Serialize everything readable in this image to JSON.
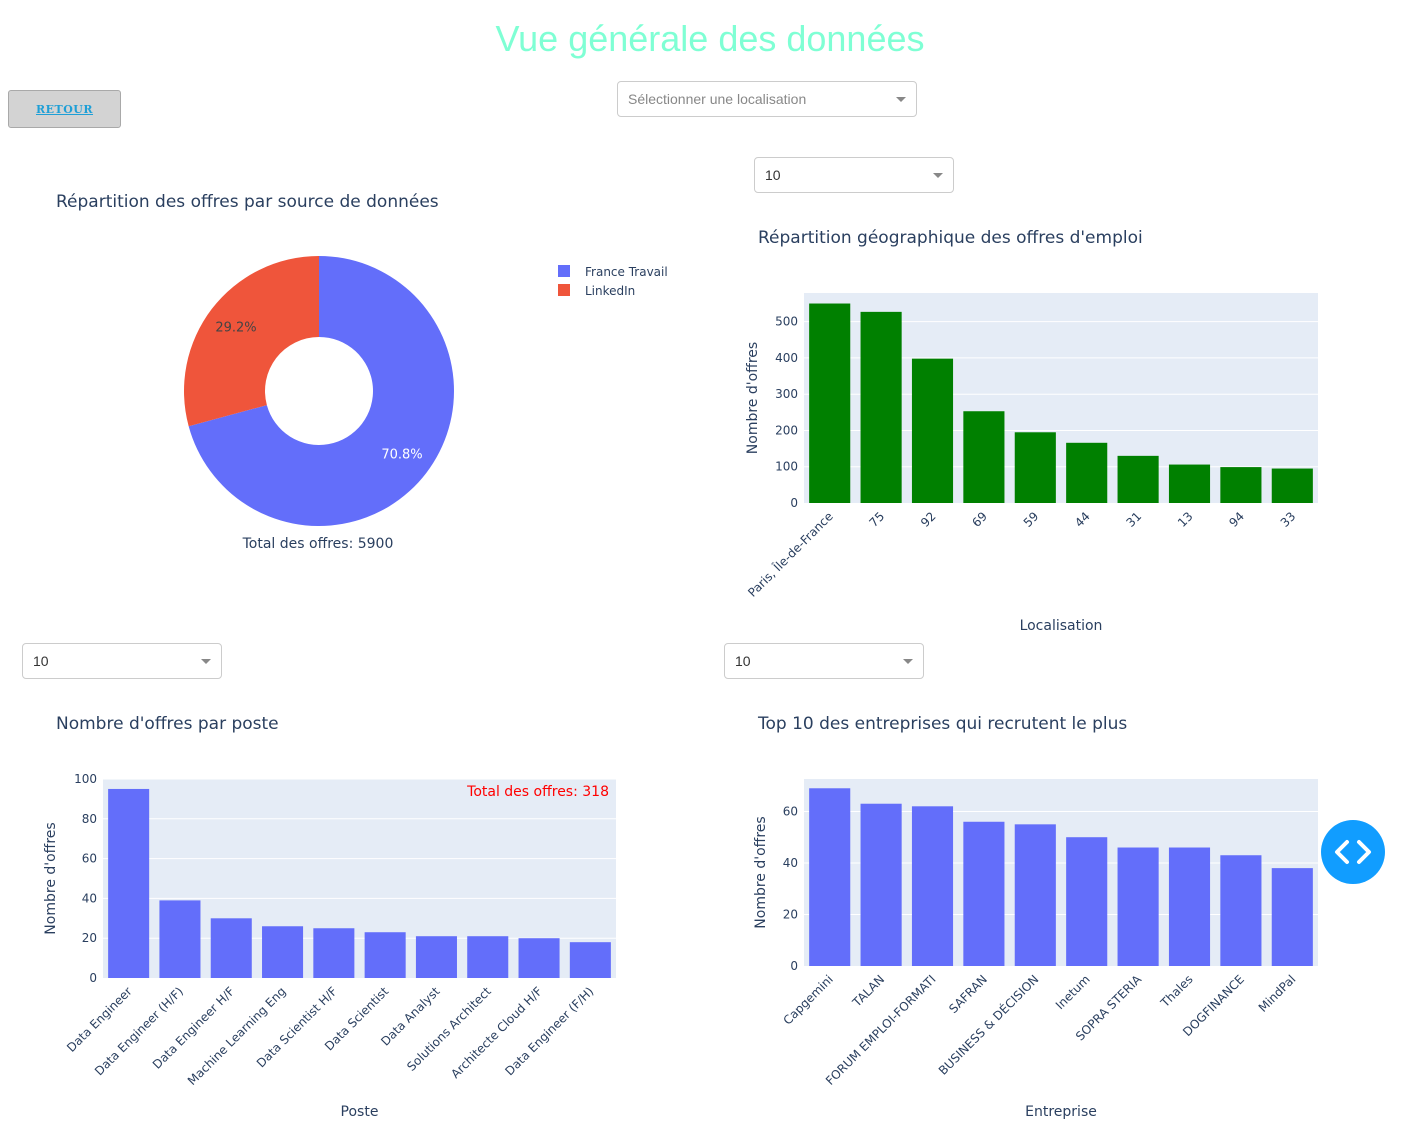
{
  "page": {
    "title": "Vue générale des données",
    "back_label": "RETOUR",
    "location_placeholder": "Sélectionner une localisation",
    "dropdown_geo_value": "10",
    "dropdown_poste_value": "10",
    "dropdown_entreprise_value": "10"
  },
  "chart_data": [
    {
      "id": "source",
      "type": "pie",
      "title": "Répartition des offres par source de données",
      "labels": [
        "France Travail",
        "LinkedIn"
      ],
      "values": [
        70.8,
        29.2
      ],
      "value_labels": [
        "70.8%",
        "29.2%"
      ],
      "colors": [
        "#636efa",
        "#ef553b"
      ],
      "hole": 0.4,
      "annotation": "Total des offres: 5900",
      "legend": "top-right"
    },
    {
      "id": "geo",
      "type": "bar",
      "title": "Répartition géographique des offres d'emploi",
      "categories": [
        "Paris, Île-de-France",
        "75",
        "92",
        "69",
        "59",
        "44",
        "31",
        "13",
        "94",
        "33"
      ],
      "values": [
        550,
        527,
        398,
        253,
        195,
        166,
        130,
        106,
        99,
        95
      ],
      "xlabel": "Localisation",
      "ylabel": "Nombre d'offres",
      "yticks": [
        0,
        100,
        200,
        300,
        400,
        500
      ],
      "ylim": [
        0,
        579
      ],
      "color": "#008000"
    },
    {
      "id": "poste",
      "type": "bar",
      "title": "Nombre d'offres par poste",
      "categories": [
        "Data Engineer",
        "Data Engineer (H/F)",
        "Data Engineer H/F",
        "Machine Learning Eng",
        "Data Scientist H/F",
        "Data Scientist",
        "Data Analyst",
        "Solutions Architect",
        "Architecte Cloud H/F",
        "Data Engineer (F/H)"
      ],
      "values": [
        95,
        39,
        30,
        26,
        25,
        23,
        21,
        21,
        20,
        18
      ],
      "xlabel": "Poste",
      "ylabel": "Nombre d'offres",
      "yticks": [
        0,
        20,
        40,
        60,
        80,
        100
      ],
      "ylim": [
        0,
        100
      ],
      "annotation": "Total des offres: 318",
      "annotation_color": "#ff0000",
      "color": "#636efa"
    },
    {
      "id": "entreprise",
      "type": "bar",
      "title": "Top 10 des entreprises qui recrutent le plus",
      "categories": [
        "Capgemini",
        "TALAN",
        "FORUM EMPLOI-FORMATI",
        "SAFRAN",
        "BUSINESS & DÉCISION",
        "Inetum",
        "SOPRA STERIA",
        "Thales",
        "DOGFINANCE",
        "MindPal"
      ],
      "values": [
        69,
        63,
        62,
        56,
        55,
        50,
        46,
        46,
        43,
        38
      ],
      "xlabel": "Entreprise",
      "ylabel": "Nombre d'offres",
      "yticks": [
        0,
        20,
        40,
        60
      ],
      "ylim": [
        0,
        72.6
      ],
      "color": "#636efa"
    }
  ],
  "icons": {
    "code_toggle": "code-brackets-icon"
  }
}
